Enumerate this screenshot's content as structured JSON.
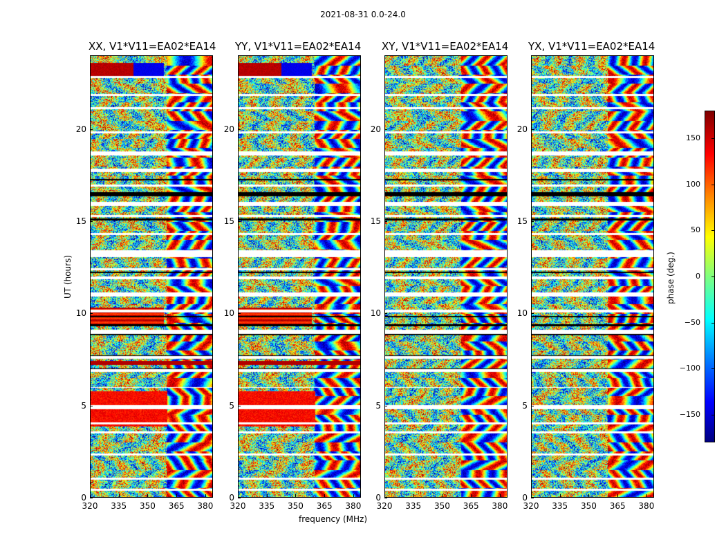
{
  "figure_title": "2021-08-31 0.0-24.0",
  "chart_data": {
    "type": "heatmap",
    "title": "2021-08-31 0.0-24.0",
    "xlabel": "frequency (MHz)",
    "ylabel": "UT (hours)",
    "xlim": [
      320,
      384
    ],
    "ylim": [
      0,
      24
    ],
    "xticks": [
      "320",
      "335",
      "350",
      "365",
      "380"
    ],
    "yticks": [
      "0",
      "5",
      "10",
      "15",
      "20"
    ],
    "panels": [
      {
        "title": "XX, V1*V11=EA02*EA14"
      },
      {
        "title": "YY, V1*V11=EA02*EA14"
      },
      {
        "title": "XY, V1*V11=EA02*EA14"
      },
      {
        "title": "YX, V1*V11=EA02*EA14"
      }
    ],
    "colorbar": {
      "label": "phase (deg.)",
      "range": [
        -180,
        180
      ],
      "ticks": [
        "150",
        "100",
        "50",
        "0",
        "−50",
        "−100",
        "−150"
      ],
      "tick_values": [
        150,
        100,
        50,
        0,
        -50,
        -100,
        -150
      ],
      "colormap": "jet"
    }
  }
}
